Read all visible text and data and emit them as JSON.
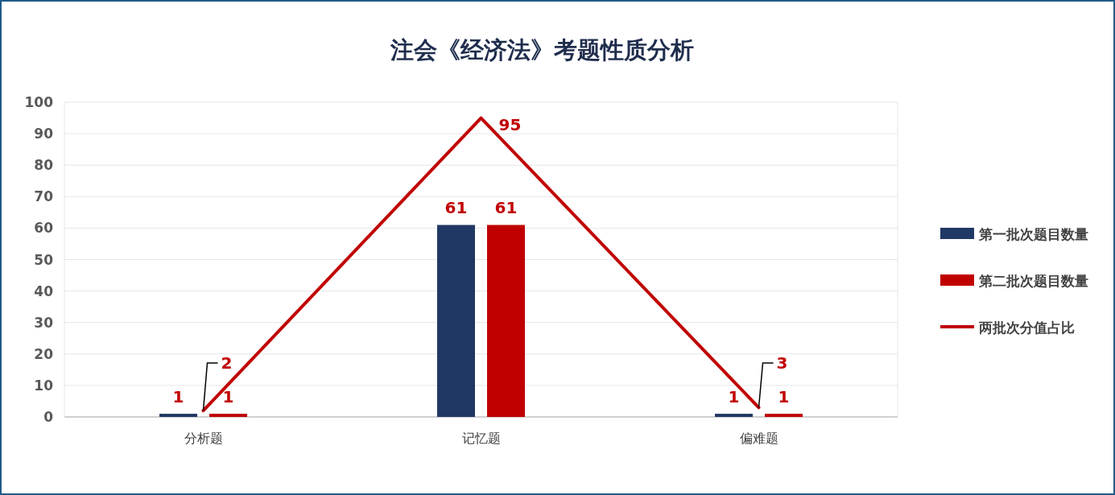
{
  "chart_data": {
    "type": "bar",
    "title": "注会《经济法》考题性质分析",
    "categories": [
      "分析题",
      "记忆题",
      "偏难题"
    ],
    "series": [
      {
        "name": "第一批次题目数量",
        "color": "#203864",
        "values": [
          1,
          61,
          1
        ]
      },
      {
        "name": "第二批次题目数量",
        "color": "#c00000",
        "values": [
          1,
          61,
          1
        ]
      },
      {
        "name": "两批次分值占比",
        "type": "line",
        "color": "#c00000",
        "values": [
          2,
          95,
          3
        ]
      }
    ],
    "ylim": [
      0,
      100
    ],
    "yticks": [
      0,
      10,
      20,
      30,
      40,
      50,
      60,
      70,
      80,
      90,
      100
    ],
    "grid": "y",
    "legend": "right",
    "data_labels": true
  }
}
